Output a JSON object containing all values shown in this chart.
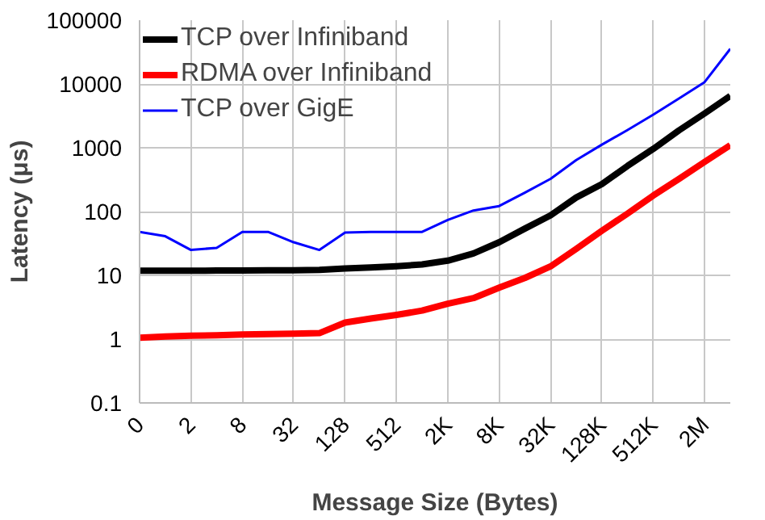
{
  "chart_data": {
    "type": "line",
    "xlabel": "Message Size (Bytes)",
    "ylabel": "Latency (μs)",
    "categories": [
      "0",
      null,
      "2",
      null,
      "8",
      null,
      "32",
      null,
      "128",
      null,
      "512",
      null,
      "2K",
      null,
      "8K",
      null,
      "32K",
      null,
      "128K",
      null,
      "512K",
      null,
      "2M",
      null
    ],
    "series": [
      {
        "name": "TCP over Infiniband",
        "color": "#000000",
        "values": [
          11.8,
          11.8,
          11.8,
          11.9,
          11.9,
          12,
          12,
          12.2,
          12.8,
          13.3,
          13.9,
          14.8,
          17,
          22,
          33,
          54,
          87,
          166,
          270,
          520,
          960,
          1870,
          3450,
          6500
        ]
      },
      {
        "name": "RDMA over Infiniband",
        "color": "#ff0000",
        "values": [
          1.05,
          1.1,
          1.13,
          1.15,
          1.18,
          1.2,
          1.22,
          1.24,
          1.82,
          2.1,
          2.4,
          2.8,
          3.6,
          4.4,
          6.4,
          9.1,
          13.8,
          26,
          50,
          93,
          178,
          325,
          600,
          1100
        ]
      },
      {
        "name": "TCP over GigE",
        "color": "#0000ff",
        "values": [
          48,
          41,
          25,
          27,
          48,
          48,
          33,
          25,
          47,
          48,
          48,
          48,
          74,
          104,
          122,
          198,
          326,
          640,
          1120,
          1900,
          3300,
          5900,
          10700,
          35500
        ]
      }
    ],
    "log": "y",
    "ylim": [
      0.1,
      100000
    ],
    "yticks": [
      0.1,
      1,
      10,
      100,
      1000,
      10000,
      100000
    ],
    "grid": true,
    "legend": "top left"
  }
}
